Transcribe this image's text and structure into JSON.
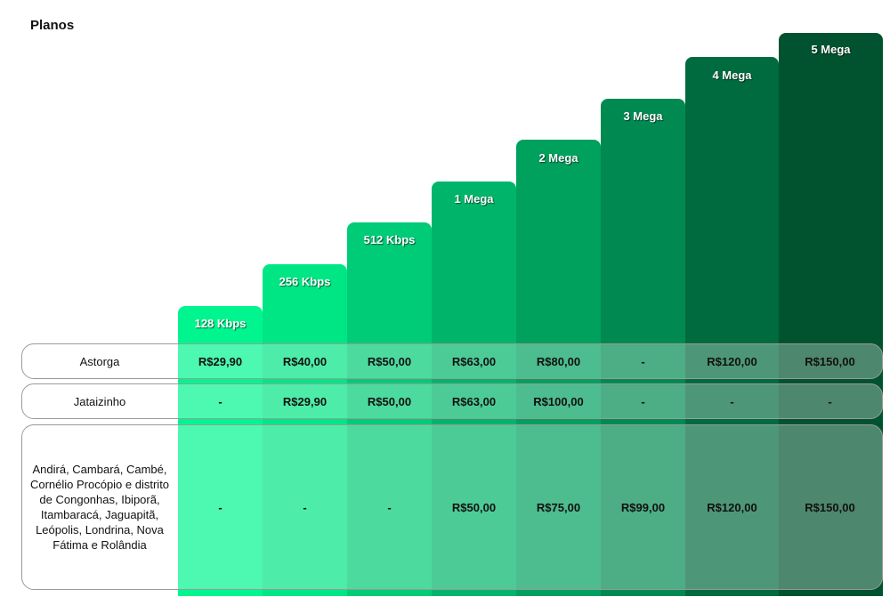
{
  "title": "Planos",
  "plans": [
    {
      "label": "128 Kbps",
      "color": "#00f58e"
    },
    {
      "label": "256 Kbps",
      "color": "#00e684"
    },
    {
      "label": "512 Kbps",
      "color": "#00cb76"
    },
    {
      "label": "1 Mega",
      "color": "#00b56a"
    },
    {
      "label": "2 Mega",
      "color": "#00a05d"
    },
    {
      "label": "3 Mega",
      "color": "#008a51"
    },
    {
      "label": "4 Mega",
      "color": "#006b3e"
    },
    {
      "label": "5 Mega",
      "color": "#00532e"
    }
  ],
  "rows": [
    {
      "city": "Astorga",
      "values": [
        "R$29,90",
        "R$40,00",
        "R$50,00",
        "R$63,00",
        "R$80,00",
        "-",
        "R$120,00",
        "R$150,00"
      ]
    },
    {
      "city": "Jataizinho",
      "values": [
        "-",
        "R$29,90",
        "R$50,00",
        "R$63,00",
        "R$100,00",
        "-",
        "-",
        "-"
      ]
    },
    {
      "city": "Andirá, Cambará, Cambé, Cornélio Procópio e distrito de Congonhas, Ibiporã, Itambaracá, Jaguapitã, Leópolis, Londrina, Nova Fátima e Rolândia",
      "values": [
        "-",
        "-",
        "-",
        "R$50,00",
        "R$75,00",
        "R$99,00",
        "R$120,00",
        "R$150,00"
      ]
    }
  ]
}
